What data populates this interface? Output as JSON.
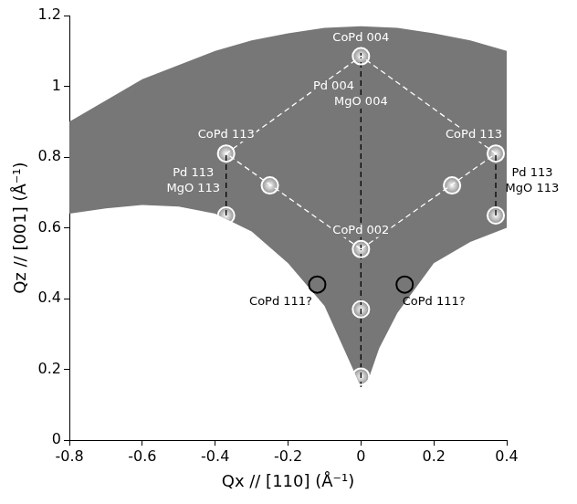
{
  "chart_data": {
    "type": "scatter",
    "x_label": "Qx // [110] (Å⁻¹)",
    "y_label": "Qz // [001] (Å⁻¹)",
    "xlim": [
      -0.8,
      0.4
    ],
    "xticks": [
      -0.8,
      -0.6,
      -0.4,
      -0.2,
      0,
      0.2,
      0.4
    ],
    "ylim": [
      0,
      1.2
    ],
    "yticks": [
      0,
      0.2,
      0.4,
      0.6,
      0.8,
      1,
      1.2
    ],
    "grid": false,
    "scan_region": {
      "color": "#777777",
      "x": [
        -0.8,
        -0.7,
        -0.6,
        -0.5,
        -0.4,
        -0.3,
        -0.2,
        -0.1,
        0,
        0.1,
        0.2,
        0.3,
        0.4,
        0.4,
        0.3,
        0.2,
        0.1,
        0.05,
        0.02,
        0,
        -0.03,
        -0.1,
        -0.2,
        -0.3,
        -0.4,
        -0.5,
        -0.6,
        -0.7,
        -0.8
      ],
      "y": [
        0.9,
        0.96,
        1.02,
        1.06,
        1.1,
        1.13,
        1.15,
        1.165,
        1.17,
        1.165,
        1.15,
        1.13,
        1.1,
        0.6,
        0.56,
        0.5,
        0.36,
        0.26,
        0.17,
        0.15,
        0.22,
        0.38,
        0.5,
        0.59,
        0.64,
        0.66,
        0.665,
        0.655,
        0.64
      ]
    },
    "series": [
      {
        "color": "#ffffff",
        "marker": "circle",
        "x": [
          0,
          -0.37,
          0.37,
          -0.25,
          0.25,
          0,
          0,
          0,
          -0.37,
          0.37
        ],
        "y": [
          1.085,
          0.81,
          0.81,
          0.72,
          0.72,
          0.54,
          0.37,
          0.18,
          0.635,
          0.635
        ]
      },
      {
        "color": "#000000",
        "marker": "circle",
        "x": [
          -0.12,
          0.12
        ],
        "y": [
          0.44,
          0.44
        ]
      }
    ],
    "lines": [
      {
        "color": "#ffffff",
        "line_style": "dashed",
        "x": [
          0,
          -0.37,
          0,
          0.37,
          0
        ],
        "y": [
          0.54,
          0.81,
          1.085,
          0.81,
          0.54
        ]
      },
      {
        "color": "#000000",
        "line_style": "dashed",
        "x": [
          0,
          0
        ],
        "y": [
          0.15,
          1.1
        ]
      },
      {
        "color": "#000000",
        "line_style": "dashed",
        "x": [
          -0.37,
          -0.37
        ],
        "y": [
          0.635,
          0.81
        ]
      },
      {
        "color": "#000000",
        "line_style": "dashed",
        "x": [
          0.37,
          0.37
        ],
        "y": [
          0.635,
          0.81
        ]
      }
    ],
    "annotations": [
      {
        "text": "CoPd 004",
        "x": 0,
        "y": 1.137,
        "color": "#ffffff"
      },
      {
        "text": "Pd 004",
        "x": -0.075,
        "y": 1.0,
        "color": "#ffffff"
      },
      {
        "text": "MgO 004",
        "x": 0,
        "y": 0.955,
        "color": "#ffffff"
      },
      {
        "text": "CoPd 113",
        "x": -0.37,
        "y": 0.862,
        "color": "#ffffff"
      },
      {
        "text": "Pd 113",
        "x": -0.46,
        "y": 0.755,
        "color": "#ffffff"
      },
      {
        "text": "MgO 113",
        "x": -0.46,
        "y": 0.71,
        "color": "#ffffff"
      },
      {
        "text": "CoPd 113",
        "x": 0.31,
        "y": 0.862,
        "color": "#ffffff"
      },
      {
        "text": "Pd 113",
        "x": 0.47,
        "y": 0.755,
        "color": "#000000"
      },
      {
        "text": "MgO 113",
        "x": 0.47,
        "y": 0.71,
        "color": "#000000"
      },
      {
        "text": "CoPd 002",
        "x": 0,
        "y": 0.592,
        "color": "#ffffff"
      },
      {
        "text": "CoPd 111?",
        "x": -0.22,
        "y": 0.39,
        "color": "#000000"
      },
      {
        "text": "CoPd 111?",
        "x": 0.2,
        "y": 0.39,
        "color": "#000000"
      }
    ]
  }
}
